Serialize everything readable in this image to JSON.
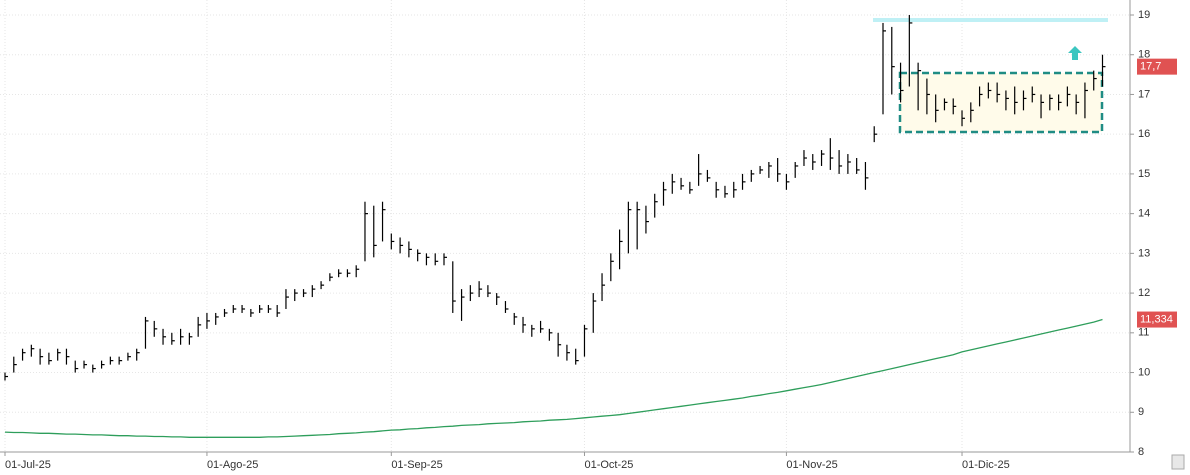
{
  "chart_data": {
    "type": "ohlc",
    "categories": [
      "01-Jul-25",
      null,
      null,
      null,
      null,
      null,
      null,
      null,
      null,
      null,
      null,
      null,
      null,
      null,
      null,
      null,
      null,
      null,
      null,
      null,
      null,
      null,
      null,
      "01-Ago-25",
      null,
      null,
      null,
      null,
      null,
      null,
      null,
      null,
      null,
      null,
      null,
      null,
      null,
      null,
      null,
      null,
      null,
      null,
      null,
      null,
      "01-Sep-25",
      null,
      null,
      null,
      null,
      null,
      null,
      null,
      null,
      null,
      null,
      null,
      null,
      null,
      null,
      null,
      null,
      null,
      null,
      null,
      null,
      null,
      "01-Oct-25",
      null,
      null,
      null,
      null,
      null,
      null,
      null,
      null,
      null,
      null,
      null,
      null,
      null,
      null,
      null,
      null,
      null,
      null,
      null,
      null,
      null,
      null,
      "01-Nov-25",
      null,
      null,
      null,
      null,
      null,
      null,
      null,
      null,
      null,
      null,
      null,
      null,
      null,
      null,
      null,
      null,
      null,
      null,
      null,
      "01-Dic-25",
      null,
      null,
      null,
      null,
      null,
      null,
      null,
      null,
      null,
      null,
      null,
      null,
      null,
      null,
      null,
      null
    ],
    "high": [
      10.0,
      10.4,
      10.6,
      10.7,
      10.6,
      10.5,
      10.6,
      10.6,
      10.3,
      10.3,
      10.2,
      10.3,
      10.4,
      10.4,
      10.5,
      10.6,
      11.4,
      11.3,
      11.1,
      11.0,
      11.1,
      11.0,
      11.4,
      11.5,
      11.5,
      11.6,
      11.7,
      11.7,
      11.6,
      11.7,
      11.7,
      11.7,
      12.1,
      12.1,
      12.1,
      12.2,
      12.3,
      12.5,
      12.6,
      12.6,
      12.7,
      14.3,
      14.2,
      14.3,
      13.5,
      13.4,
      13.3,
      13.1,
      13.0,
      13.0,
      13.0,
      12.8,
      12.1,
      12.2,
      12.3,
      12.2,
      12.0,
      11.8,
      11.5,
      11.4,
      11.2,
      11.3,
      11.1,
      11.0,
      10.7,
      10.6,
      11.2,
      12.0,
      12.5,
      13.0,
      13.6,
      14.3,
      14.3,
      14.2,
      14.5,
      14.8,
      15.0,
      14.9,
      14.8,
      15.5,
      15.1,
      14.8,
      14.7,
      14.8,
      15.0,
      15.1,
      15.2,
      15.3,
      15.4,
      15.0,
      15.3,
      15.6,
      15.5,
      15.6,
      15.9,
      15.6,
      15.5,
      15.4,
      15.3,
      16.2,
      18.8,
      18.7,
      17.8,
      19.0,
      17.8,
      17.4,
      17.0,
      16.9,
      16.9,
      16.6,
      16.8,
      17.2,
      17.3,
      17.3,
      17.1,
      17.2,
      17.1,
      17.2,
      17.0,
      17.0,
      17.0,
      17.2,
      17.0,
      17.3,
      17.6,
      18.0
    ],
    "low": [
      9.8,
      10.0,
      10.3,
      10.4,
      10.2,
      10.2,
      10.3,
      10.2,
      10.0,
      10.1,
      10.0,
      10.1,
      10.2,
      10.2,
      10.3,
      10.3,
      10.6,
      10.9,
      10.7,
      10.7,
      10.7,
      10.7,
      10.9,
      11.1,
      11.2,
      11.4,
      11.5,
      11.5,
      11.4,
      11.5,
      11.5,
      11.4,
      11.6,
      11.8,
      11.9,
      11.9,
      12.1,
      12.3,
      12.4,
      12.4,
      12.4,
      12.8,
      12.9,
      13.3,
      13.1,
      13.0,
      12.9,
      12.8,
      12.7,
      12.7,
      12.7,
      11.5,
      11.3,
      11.8,
      11.9,
      11.9,
      11.7,
      11.5,
      11.2,
      11.0,
      10.9,
      11.0,
      10.8,
      10.4,
      10.3,
      10.2,
      10.4,
      11.0,
      11.8,
      12.3,
      12.6,
      13.0,
      13.1,
      13.5,
      13.9,
      14.2,
      14.5,
      14.6,
      14.5,
      14.7,
      14.8,
      14.4,
      14.4,
      14.4,
      14.6,
      14.8,
      15.0,
      14.9,
      14.8,
      14.6,
      14.9,
      15.2,
      15.1,
      15.2,
      15.1,
      15.0,
      15.0,
      15.0,
      14.6,
      15.8,
      16.5,
      17.0,
      16.8,
      17.2,
      16.6,
      16.5,
      16.3,
      16.6,
      16.5,
      16.2,
      16.3,
      16.7,
      16.9,
      16.8,
      16.6,
      16.5,
      16.6,
      16.8,
      16.4,
      16.6,
      16.6,
      16.7,
      16.5,
      16.4,
      17.1,
      17.2
    ],
    "close": [
      9.9,
      10.2,
      10.5,
      10.6,
      10.4,
      10.3,
      10.5,
      10.4,
      10.1,
      10.2,
      10.1,
      10.2,
      10.3,
      10.3,
      10.4,
      10.5,
      11.3,
      11.1,
      10.9,
      10.8,
      10.9,
      10.9,
      11.2,
      11.3,
      11.4,
      11.5,
      11.6,
      11.6,
      11.5,
      11.6,
      11.6,
      11.5,
      11.9,
      12.0,
      12.0,
      12.1,
      12.2,
      12.4,
      12.5,
      12.5,
      12.6,
      14.0,
      13.2,
      14.1,
      13.3,
      13.2,
      13.1,
      13.0,
      12.9,
      12.8,
      12.9,
      11.8,
      11.9,
      12.0,
      12.1,
      12.0,
      11.9,
      11.6,
      11.4,
      11.2,
      11.1,
      11.1,
      11.0,
      10.7,
      10.5,
      10.3,
      11.1,
      11.8,
      12.2,
      12.8,
      13.3,
      14.1,
      14.1,
      13.8,
      14.3,
      14.6,
      14.8,
      14.7,
      14.6,
      15.0,
      14.9,
      14.6,
      14.5,
      14.6,
      14.8,
      15.0,
      15.1,
      15.2,
      15.0,
      14.8,
      15.2,
      15.4,
      15.3,
      15.5,
      15.4,
      15.2,
      15.3,
      15.1,
      14.9,
      16.0,
      18.6,
      17.7,
      17.1,
      18.8,
      17.6,
      17.0,
      16.6,
      16.8,
      16.7,
      16.4,
      16.6,
      17.0,
      17.1,
      17.0,
      16.9,
      16.8,
      16.9,
      17.0,
      16.8,
      16.9,
      16.8,
      17.0,
      16.8,
      17.1,
      17.4,
      17.7
    ],
    "color": "#000000",
    "ma": {
      "color": "#2e9e5b",
      "values": [
        8.5,
        8.49,
        8.49,
        8.48,
        8.47,
        8.47,
        8.46,
        8.45,
        8.45,
        8.44,
        8.43,
        8.43,
        8.42,
        8.41,
        8.41,
        8.4,
        8.4,
        8.39,
        8.39,
        8.38,
        8.38,
        8.37,
        8.37,
        8.37,
        8.37,
        8.37,
        8.37,
        8.37,
        8.37,
        8.37,
        8.38,
        8.38,
        8.39,
        8.4,
        8.41,
        8.42,
        8.43,
        8.44,
        8.46,
        8.47,
        8.48,
        8.5,
        8.51,
        8.53,
        8.55,
        8.56,
        8.58,
        8.59,
        8.61,
        8.62,
        8.64,
        8.65,
        8.67,
        8.68,
        8.69,
        8.71,
        8.72,
        8.73,
        8.74,
        8.76,
        8.77,
        8.78,
        8.8,
        8.81,
        8.82,
        8.84,
        8.86,
        8.88,
        8.9,
        8.92,
        8.94,
        8.97,
        9.0,
        9.03,
        9.06,
        9.09,
        9.12,
        9.15,
        9.18,
        9.21,
        9.24,
        9.27,
        9.3,
        9.33,
        9.36,
        9.4,
        9.43,
        9.47,
        9.5,
        9.54,
        9.58,
        9.62,
        9.66,
        9.7,
        9.75,
        9.8,
        9.85,
        9.9,
        9.95,
        10.0,
        10.05,
        10.1,
        10.15,
        10.2,
        10.25,
        10.3,
        10.35,
        10.4,
        10.45,
        10.52,
        10.57,
        10.62,
        10.67,
        10.72,
        10.77,
        10.82,
        10.87,
        10.92,
        10.97,
        11.02,
        11.07,
        11.12,
        11.17,
        11.22,
        11.27,
        11.334
      ]
    },
    "last_price": {
      "value": 17.7,
      "label": "17,7"
    },
    "ma_last": {
      "value": 11.334,
      "label": "11,334"
    },
    "ylim": [
      8,
      19
    ],
    "yticks": [
      8,
      9,
      10,
      11,
      12,
      13,
      14,
      15,
      16,
      17,
      18,
      19
    ],
    "grid": true
  }
}
